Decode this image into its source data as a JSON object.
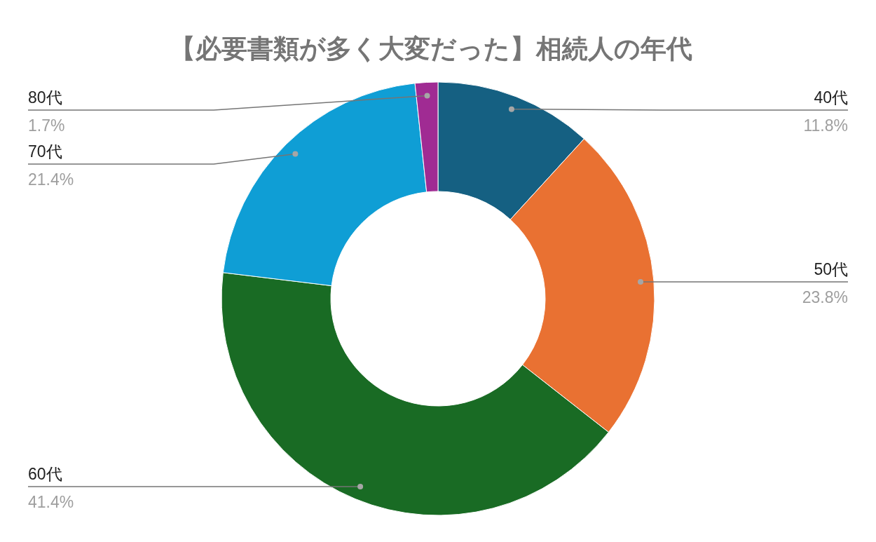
{
  "chart_data": {
    "type": "donut",
    "title": "【必要書類が多く大変だった】相続人の年代",
    "categories": [
      "40代",
      "50代",
      "60代",
      "70代",
      "80代"
    ],
    "values": [
      11.8,
      23.8,
      41.4,
      21.4,
      1.7
    ],
    "value_labels": [
      "11.8%",
      "23.8%",
      "41.4%",
      "21.4%",
      "1.7%"
    ],
    "colors": [
      "#156082",
      "#e97132",
      "#196b24",
      "#0f9ed5",
      "#a02b93"
    ]
  }
}
